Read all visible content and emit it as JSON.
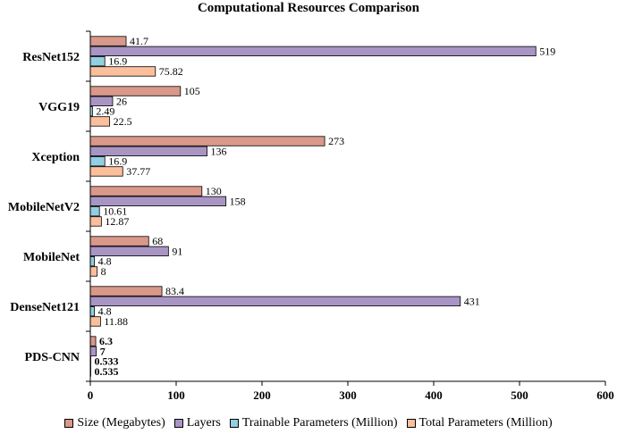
{
  "chart_data": {
    "type": "bar",
    "orientation": "horizontal",
    "title": "Computational Resources Comparison",
    "xlabel": "",
    "ylabel": "",
    "xlim": [
      0,
      600
    ],
    "xticks": [
      0,
      100,
      200,
      300,
      400,
      500,
      600
    ],
    "grid": false,
    "legend_position": "bottom",
    "categories": [
      "ResNet152",
      "VGG19",
      "Xception",
      "MobileNetV2",
      "MobileNet",
      "DenseNet121",
      "PDS-CNN"
    ],
    "series": [
      {
        "name": "Size (Megabytes)",
        "color": "#d99889",
        "values": [
          41.7,
          105,
          273,
          130,
          68,
          83.4,
          6.3
        ],
        "labels": [
          "41.7",
          "105",
          "273",
          "130",
          "68",
          "83.4",
          "6.3"
        ]
      },
      {
        "name": "Layers",
        "color": "#a995c4",
        "values": [
          519,
          26,
          136,
          158,
          91,
          431,
          7
        ],
        "labels": [
          "519",
          "26",
          "136",
          "158",
          "91",
          "431",
          "7"
        ]
      },
      {
        "name": "Trainable Parameters (Million)",
        "color": "#92cfe0",
        "values": [
          16.9,
          2.49,
          16.9,
          10.61,
          4.8,
          4.8,
          0.533
        ],
        "labels": [
          "16.9",
          "2.49",
          "16.9",
          "10.61",
          "4.8",
          "4.8",
          "0.533"
        ]
      },
      {
        "name": "Total Parameters (Million)",
        "color": "#fbbf9c",
        "values": [
          75.82,
          22.5,
          37.77,
          12.87,
          8,
          11.88,
          0.535
        ],
        "labels": [
          "75.82",
          "22.5",
          "37.77",
          "12.87",
          "8",
          "11.88",
          "0.535"
        ]
      }
    ],
    "bold_labels_category": "PDS-CNN"
  }
}
